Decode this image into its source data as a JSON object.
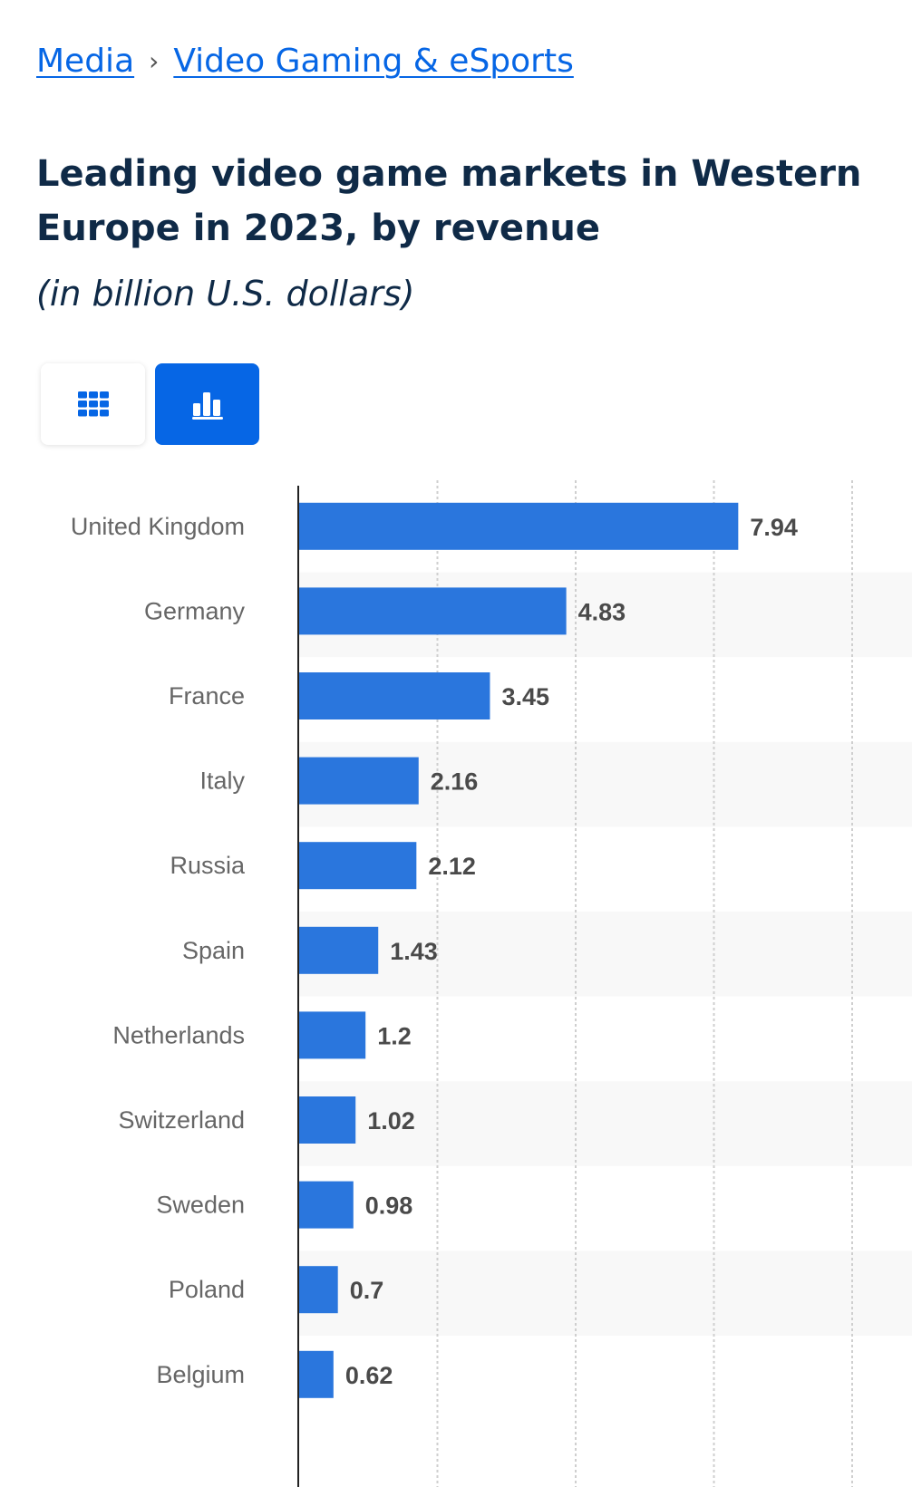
{
  "breadcrumb": {
    "items": [
      "Media",
      "Video Gaming & eSports"
    ],
    "separator": "›"
  },
  "header": {
    "title": "Leading video game markets in Western Europe in 2023, by revenue",
    "subtitle": "(in billion U.S. dollars)"
  },
  "view_toggle": {
    "options": [
      {
        "name": "table",
        "icon": "grid-icon",
        "active": false
      },
      {
        "name": "chart",
        "icon": "bar-chart-icon",
        "active": true
      }
    ]
  },
  "colors": {
    "accent": "#0666e5",
    "bar": "#2a76dd",
    "title": "#0f2a47",
    "band": "#f8f8f8"
  },
  "chart_data": {
    "type": "bar",
    "orientation": "horizontal",
    "title": "Leading video game markets in Western Europe in 2023, by revenue",
    "subtitle": "(in billion U.S. dollars)",
    "xlabel": "",
    "ylabel": "",
    "xlim": [
      0,
      10
    ],
    "grid_values": [
      2.5,
      5,
      7.5,
      10
    ],
    "grid": true,
    "categories": [
      "United Kingdom",
      "Germany",
      "France",
      "Italy",
      "Russia",
      "Spain",
      "Netherlands",
      "Switzerland",
      "Sweden",
      "Poland",
      "Belgium"
    ],
    "values": [
      7.94,
      4.83,
      3.45,
      2.16,
      2.12,
      1.43,
      1.2,
      1.02,
      0.98,
      0.7,
      0.62
    ],
    "value_labels": [
      "7.94",
      "4.83",
      "3.45",
      "2.16",
      "2.12",
      "1.43",
      "1.2",
      "1.02",
      "0.98",
      "0.7",
      "0.62"
    ]
  }
}
